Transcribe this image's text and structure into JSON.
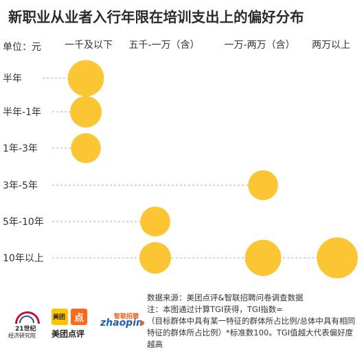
{
  "title": "新职业从业者入行年限在培训支出上的偏好分布",
  "unit_label": "单位：元",
  "chart_data": {
    "type": "scatter",
    "title": "新职业从业者入行年限在培训支出上的偏好分布",
    "x_categories": [
      "一千及以下",
      "五千-一万（含）",
      "一万-两万（含）",
      "两万以上"
    ],
    "y_categories": [
      "半年",
      "半年-1年",
      "1年-3年",
      "3年-5年",
      "5年-10年",
      "10年以上"
    ],
    "points": [
      {
        "x": "一千及以下",
        "y": "半年",
        "size": 1.15
      },
      {
        "x": "一千及以下",
        "y": "半年-1年",
        "size": 1.0
      },
      {
        "x": "一千及以下",
        "y": "1年-3年",
        "size": 0.95
      },
      {
        "x": "一万-两万（含）",
        "y": "3年-5年",
        "size": 0.95
      },
      {
        "x": "五千-一万（含）",
        "y": "5年-10年",
        "size": 0.95
      },
      {
        "x": "五千-一万（含）",
        "y": "10年以上",
        "size": 1.0
      },
      {
        "x": "一万-两万（含）",
        "y": "10年以上",
        "size": 1.15
      },
      {
        "x": "两万以上",
        "y": "10年以上",
        "size": 1.3
      }
    ],
    "colors": {
      "bubble": "#fcc534",
      "guide": "#aaaaaa"
    },
    "grid": false
  },
  "logos": {
    "logo_21": {
      "line1": "21世纪",
      "line2": "经济研究院"
    },
    "meituan": {
      "badge1": "美团",
      "badge2": "点",
      "caption": "美团点评"
    },
    "zhaopin": {
      "cn": "智联招聘",
      "en": "zhaopin"
    }
  },
  "notes": {
    "source": "数据来源：美团点评&智联招聘问卷调查数据",
    "note1": "注：本图通过计算TGI获得，TGI指数=",
    "note2": "（目标群体中具有某一特征的群体所占比例/总体中具有相同特征的群体所占比例）*标准数100。TGI值越大代表偏好度越高"
  }
}
